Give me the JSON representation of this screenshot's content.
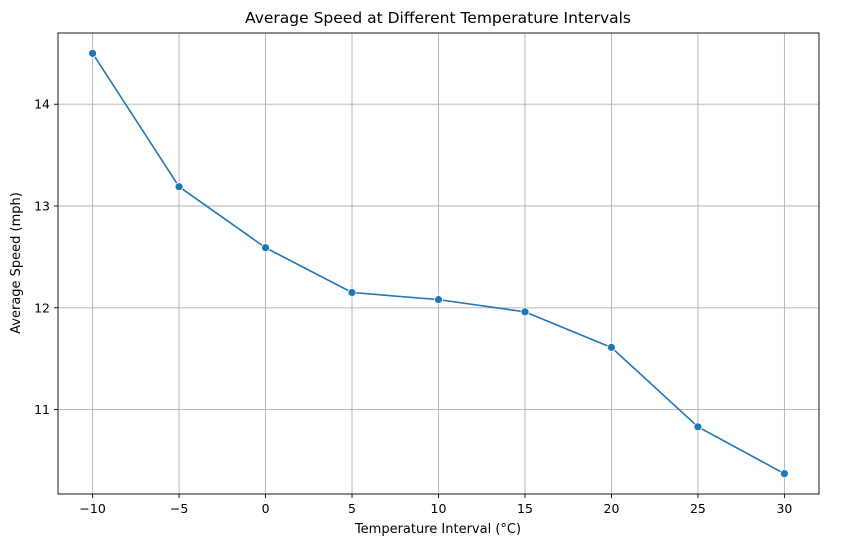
{
  "chart_data": {
    "type": "line",
    "title": "Average Speed at Different Temperature Intervals",
    "xlabel": "Temperature Interval (°C)",
    "ylabel": "Average Speed (mph)",
    "x": [
      -10,
      -5,
      0,
      5,
      10,
      15,
      20,
      25,
      30
    ],
    "series": [
      {
        "values": [
          14.5,
          13.19,
          12.59,
          12.15,
          12.08,
          11.96,
          11.61,
          10.83,
          10.37
        ]
      }
    ],
    "xticks": [
      -10,
      -5,
      0,
      5,
      10,
      15,
      20,
      25,
      30
    ],
    "xtick_labels": [
      "−10",
      "−5",
      "0",
      "5",
      "10",
      "15",
      "20",
      "25",
      "30"
    ],
    "yticks": [
      11,
      12,
      13,
      14
    ],
    "ytick_labels": [
      "11",
      "12",
      "13",
      "14"
    ],
    "xlim": [
      -12,
      32
    ],
    "ylim": [
      10.17,
      14.7
    ],
    "grid": true,
    "marker": "circle",
    "colors": {
      "line": "#1f77b4",
      "grid": "#b0b0b0",
      "axes": "#000000"
    }
  }
}
